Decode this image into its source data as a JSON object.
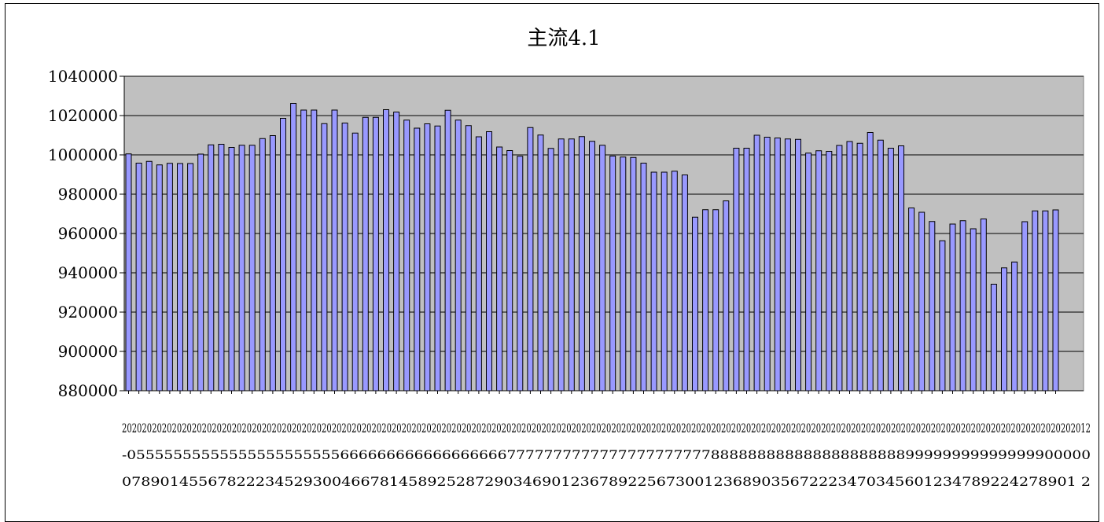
{
  "chart_data": {
    "type": "bar",
    "title": "主流4.1",
    "xlabel": "",
    "ylabel": "",
    "ylim": [
      880000,
      1040000
    ],
    "yticks": [
      880000,
      900000,
      920000,
      940000,
      960000,
      980000,
      1000000,
      1020000,
      1040000
    ],
    "ytick_labels": [
      "880000",
      "900000",
      "920000",
      "940000",
      "960000",
      "980000",
      "1000000",
      "1020000",
      "1040000"
    ],
    "grid": true,
    "legend": "none",
    "bar_color": "#9999ff",
    "plot_background": "#c0c0c0",
    "xtick_rows": [
      "20202020202020202020202020202020202020202020202020202020202020202020202020202020202020202020202020202020202020202020202020202020202020202020202020202020202020202020202020202020202020202020202012",
      "-05555555555555555555555666666666666666666777777777777777777777788888888888888888888899999999999999900000",
      "0789014556782223452930046678145892528729034690123678922567300123689035672223470345601234789224278901 2"
    ],
    "values": [
      1000500,
      995800,
      996700,
      994900,
      995700,
      995600,
      995600,
      1000400,
      1005100,
      1005400,
      1003800,
      1004900,
      1004900,
      1008300,
      1009800,
      1018600,
      1026200,
      1022800,
      1022800,
      1015900,
      1022800,
      1016200,
      1011100,
      1019100,
      1019100,
      1023000,
      1021800,
      1017700,
      1013600,
      1015800,
      1014700,
      1022700,
      1017700,
      1014900,
      1009200,
      1011800,
      1004000,
      1002200,
      999300,
      1013900,
      1010100,
      1003300,
      1008100,
      1008100,
      1009300,
      1006900,
      1004900,
      999400,
      998900,
      998700,
      995800,
      991200,
      991200,
      991700,
      989800,
      968300,
      972100,
      972100,
      976600,
      1003400,
      1003400,
      1010000,
      1009000,
      1008600,
      1008100,
      1007900,
      1000900,
      1002100,
      1001800,
      1004800,
      1006800,
      1005900,
      1011400,
      1007500,
      1003400,
      1004600,
      973000,
      970800,
      966100,
      956300,
      964800,
      966500,
      962400,
      967400,
      934200,
      942500,
      945500,
      966000,
      971500,
      971500,
      972000
    ]
  }
}
